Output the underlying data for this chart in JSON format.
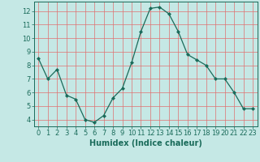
{
  "x": [
    0,
    1,
    2,
    3,
    4,
    5,
    6,
    7,
    8,
    9,
    10,
    11,
    12,
    13,
    14,
    15,
    16,
    17,
    18,
    19,
    20,
    21,
    22,
    23
  ],
  "y": [
    8.5,
    7.0,
    7.7,
    5.8,
    5.5,
    4.0,
    3.8,
    4.3,
    5.6,
    6.3,
    8.2,
    10.5,
    12.2,
    12.3,
    11.8,
    10.5,
    8.8,
    8.4,
    8.0,
    7.0,
    7.0,
    6.0,
    4.8,
    4.8
  ],
  "line_color": "#1a6b5a",
  "marker": "D",
  "marker_size": 2,
  "bg_color": "#c5e8e5",
  "grid_color": "#e07070",
  "xlabel": "Humidex (Indice chaleur)",
  "xlim": [
    -0.5,
    23.5
  ],
  "ylim": [
    3.5,
    12.7
  ],
  "yticks": [
    4,
    5,
    6,
    7,
    8,
    9,
    10,
    11,
    12
  ],
  "xticks": [
    0,
    1,
    2,
    3,
    4,
    5,
    6,
    7,
    8,
    9,
    10,
    11,
    12,
    13,
    14,
    15,
    16,
    17,
    18,
    19,
    20,
    21,
    22,
    23
  ],
  "tick_fontsize": 6,
  "xlabel_fontsize": 7
}
